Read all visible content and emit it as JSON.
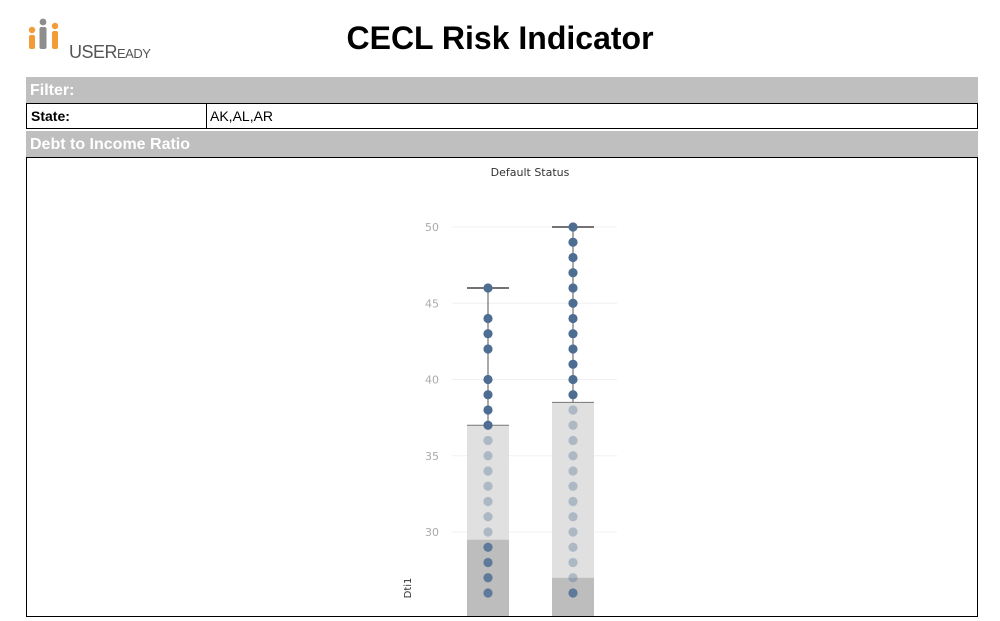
{
  "header": {
    "logo_text_main": "USER",
    "logo_text_suffix": "EADY",
    "title": "CECL Risk Indicator"
  },
  "filter": {
    "section_title": "Filter:",
    "state_label": "State:",
    "state_value": "AK,AL,AR"
  },
  "dti_section": {
    "title": "Debt to Income Ratio"
  },
  "colors": {
    "header_bar": "#bfbfbf",
    "dot": "#4e6d93",
    "box_light": "#e0e0e0",
    "box_dark": "#bdbdbd",
    "logo_orange": "#f39c36",
    "logo_gray": "#8d8d8d"
  },
  "chart_data": {
    "type": "box-dot",
    "title": "Default Status",
    "ylabel": "Dti1",
    "ylim": [
      25,
      51
    ],
    "yticks": [
      "30",
      "35",
      "40",
      "45",
      "50"
    ],
    "series": [
      {
        "whisker_max": 46,
        "q3": 37,
        "median": 29.5,
        "points": [
          46,
          44,
          43,
          42,
          40,
          39,
          38,
          37,
          36,
          35,
          34,
          33,
          32,
          31,
          30,
          29,
          28,
          27,
          26
        ]
      },
      {
        "whisker_max": 50,
        "q3": 38.5,
        "median": 27,
        "points": [
          50,
          49,
          48,
          47,
          46,
          45,
          44,
          43,
          42,
          41,
          40,
          39,
          38,
          37,
          36,
          35,
          34,
          33,
          32,
          31,
          30,
          29,
          28,
          27,
          26
        ]
      }
    ]
  }
}
